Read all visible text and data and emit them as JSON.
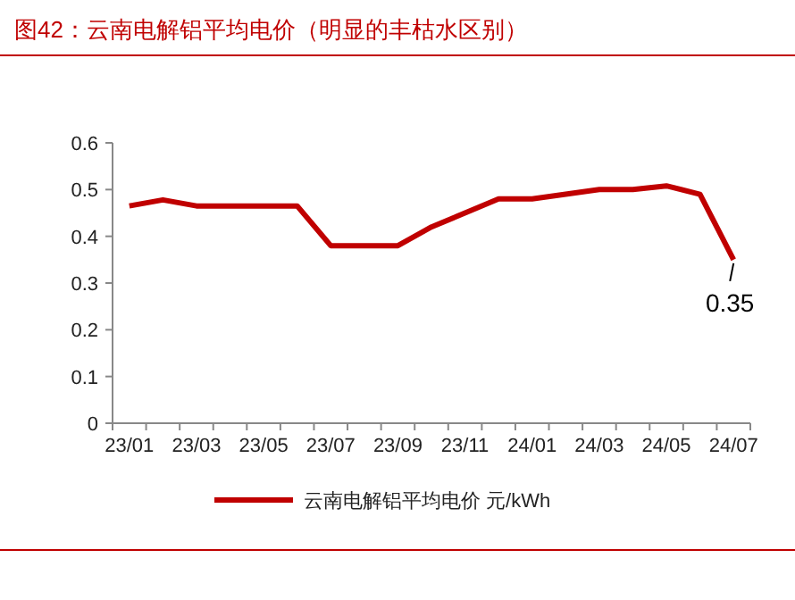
{
  "chart_data": {
    "type": "line",
    "title": "图42：云南电解铝平均电价（明显的丰枯水区别）",
    "categories": [
      "23/01",
      null,
      "23/03",
      null,
      "23/05",
      null,
      "23/07",
      null,
      "23/09",
      null,
      "23/11",
      null,
      "24/01",
      null,
      "24/03",
      null,
      "24/05",
      null,
      "24/07"
    ],
    "series": [
      {
        "name": "云南电解铝平均电价 元/kWh",
        "color": "#c00000",
        "values": [
          0.465,
          0.478,
          0.465,
          0.465,
          0.465,
          0.465,
          0.38,
          0.38,
          0.38,
          0.42,
          0.45,
          0.48,
          0.48,
          0.49,
          0.5,
          0.5,
          0.508,
          0.49,
          0.35
        ]
      }
    ],
    "ylim": [
      0,
      0.6
    ],
    "yticks": [
      0,
      0.1,
      0.2,
      0.3,
      0.4,
      0.5,
      0.6
    ],
    "annotations": [
      {
        "text": "0.35",
        "x": "24/07",
        "y": 0.35
      }
    ],
    "legend": "bottom",
    "grid": false,
    "marker": "none",
    "line_style": "solid"
  }
}
